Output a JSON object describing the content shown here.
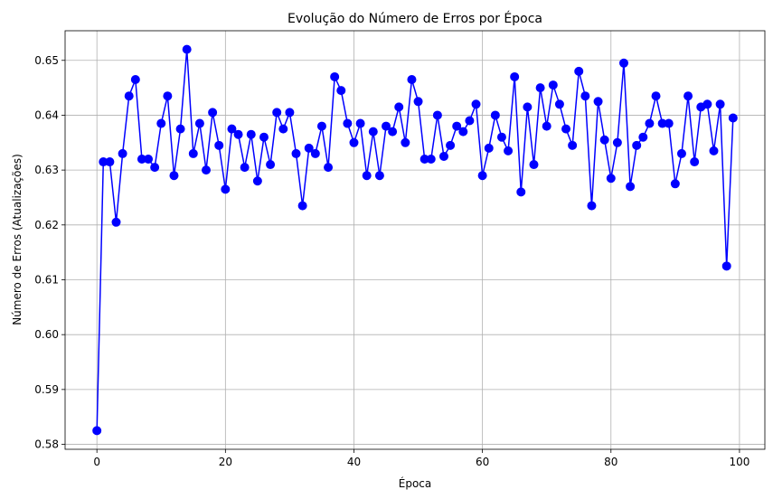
{
  "chart_data": {
    "type": "line",
    "title": "Evolução do Número de Erros por Época",
    "xlabel": "Época",
    "ylabel": "Número de Erros (Atualizações)",
    "xlim": [
      -4.95,
      103.95
    ],
    "ylim": [
      0.5791,
      0.6554
    ],
    "xticks": [
      0,
      20,
      40,
      60,
      80,
      100
    ],
    "yticks": [
      0.58,
      0.59,
      0.6,
      0.61,
      0.62,
      0.63,
      0.64,
      0.65
    ],
    "xtick_labels": [
      "0",
      "20",
      "40",
      "60",
      "80",
      "100"
    ],
    "ytick_labels": [
      "0.58",
      "0.59",
      "0.60",
      "0.61",
      "0.62",
      "0.63",
      "0.64",
      "0.65"
    ],
    "grid": true,
    "series": [
      {
        "color": "#0000ff",
        "marker": "circle",
        "x": [
          0,
          1,
          2,
          3,
          4,
          5,
          6,
          7,
          8,
          9,
          10,
          11,
          12,
          13,
          14,
          15,
          16,
          17,
          18,
          19,
          20,
          21,
          22,
          23,
          24,
          25,
          26,
          27,
          28,
          29,
          30,
          31,
          32,
          33,
          34,
          35,
          36,
          37,
          38,
          39,
          40,
          41,
          42,
          43,
          44,
          45,
          46,
          47,
          48,
          49,
          50,
          51,
          52,
          53,
          54,
          55,
          56,
          57,
          58,
          59,
          60,
          61,
          62,
          63,
          64,
          65,
          66,
          67,
          68,
          69,
          70,
          71,
          72,
          73,
          74,
          75,
          76,
          77,
          78,
          79,
          80,
          81,
          82,
          83,
          84,
          85,
          86,
          87,
          88,
          89,
          90,
          91,
          92,
          93,
          94,
          95,
          96,
          97,
          98,
          99
        ],
        "y": [
          0.5825,
          0.6315,
          0.6315,
          0.6205,
          0.633,
          0.6435,
          0.6465,
          0.632,
          0.632,
          0.6305,
          0.6385,
          0.6435,
          0.629,
          0.6375,
          0.652,
          0.633,
          0.6385,
          0.63,
          0.6405,
          0.6345,
          0.6265,
          0.6375,
          0.6365,
          0.6305,
          0.6365,
          0.628,
          0.636,
          0.631,
          0.6405,
          0.6375,
          0.6405,
          0.633,
          0.6235,
          0.634,
          0.633,
          0.638,
          0.6305,
          0.647,
          0.6445,
          0.6385,
          0.635,
          0.6385,
          0.629,
          0.637,
          0.629,
          0.638,
          0.637,
          0.6415,
          0.635,
          0.6465,
          0.6425,
          0.632,
          0.632,
          0.64,
          0.6325,
          0.6345,
          0.638,
          0.637,
          0.639,
          0.642,
          0.629,
          0.634,
          0.64,
          0.636,
          0.6335,
          0.647,
          0.626,
          0.6415,
          0.631,
          0.645,
          0.638,
          0.6455,
          0.642,
          0.6375,
          0.6345,
          0.648,
          0.6435,
          0.6235,
          0.6425,
          0.6355,
          0.6285,
          0.635,
          0.6495,
          0.627,
          0.6345,
          0.636,
          0.6385,
          0.6435,
          0.6385,
          0.6385,
          0.6275,
          0.633,
          0.6435,
          0.6315,
          0.6415,
          0.642,
          0.6335,
          0.642,
          0.6125,
          0.6395
        ]
      }
    ]
  }
}
